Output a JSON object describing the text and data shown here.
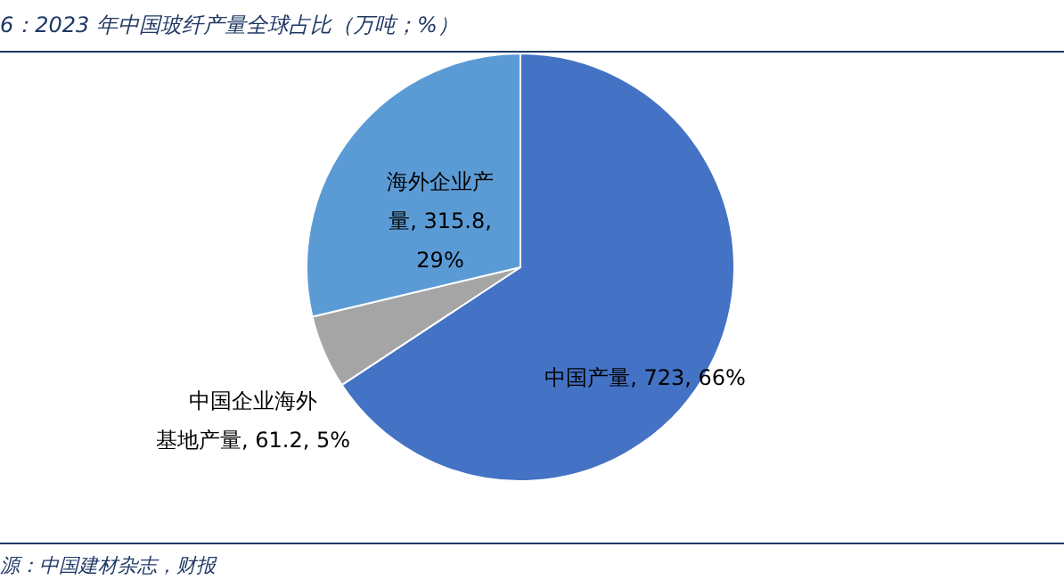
{
  "chart_data": {
    "type": "pie",
    "title": "6：2023 年中国玻纤产量全球占比（万吨；%）",
    "categories": [
      "中国产量",
      "中国企业海外基地产量",
      "海外企业产量"
    ],
    "values": [
      723,
      61.2,
      315.8
    ],
    "value_labels": [
      "723, 66%",
      "61.2, 5%",
      "315.8, 29%"
    ],
    "colors": [
      "#4472c4",
      "#a5a5a5",
      "#5b9bd5"
    ],
    "annotations": [
      "源：中国建材杂志，财报"
    ]
  }
}
